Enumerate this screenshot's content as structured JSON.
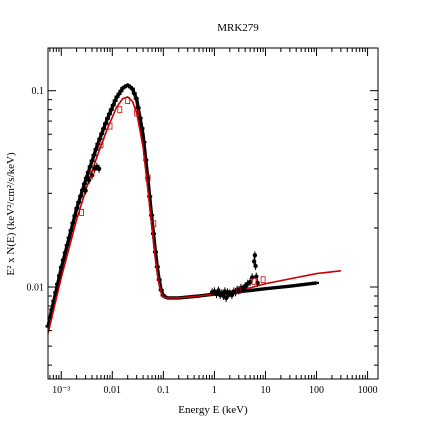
{
  "chart_data": {
    "type": "line",
    "title": "MRK279",
    "xlabel": "Energy E (keV)",
    "ylabel": "E² x N(E) (keV²/cm²/s/keV)",
    "xscale": "log",
    "yscale": "log",
    "xlim": [
      0.00055,
      1600
    ],
    "ylim": [
      0.0034,
      0.165
    ],
    "x_tick_labels": [
      {
        "value": 0.001,
        "label": "10⁻³"
      },
      {
        "value": 0.01,
        "label": "0.01"
      },
      {
        "value": 0.1,
        "label": "0.1"
      },
      {
        "value": 1,
        "label": "1"
      },
      {
        "value": 10,
        "label": "10"
      },
      {
        "value": 100,
        "label": "100"
      },
      {
        "value": 1000,
        "label": "1000"
      }
    ],
    "y_tick_labels": [
      {
        "value": 0.01,
        "label": "0.01"
      },
      {
        "value": 0.1,
        "label": "0.1"
      }
    ],
    "grid": false,
    "legend": "none",
    "series": [
      {
        "color": "#000000",
        "style": "dense-markers",
        "x": [
          0.00055,
          0.001,
          0.002,
          0.003,
          0.005,
          0.008,
          0.012,
          0.016,
          0.02,
          0.025,
          0.03,
          0.04,
          0.05,
          0.06,
          0.07,
          0.08,
          0.09,
          0.1,
          0.12,
          0.2,
          0.5,
          1,
          2,
          5,
          10,
          30,
          100
        ],
        "y": [
          0.0063,
          0.0125,
          0.025,
          0.035,
          0.052,
          0.072,
          0.092,
          0.103,
          0.107,
          0.102,
          0.09,
          0.06,
          0.035,
          0.022,
          0.015,
          0.0115,
          0.0097,
          0.009,
          0.0088,
          0.0088,
          0.009,
          0.0092,
          0.0094,
          0.0096,
          0.0098,
          0.0101,
          0.0105
        ]
      },
      {
        "color": "#cc0000",
        "style": "line",
        "x": [
          0.00055,
          0.001,
          0.002,
          0.003,
          0.005,
          0.008,
          0.012,
          0.016,
          0.02,
          0.025,
          0.03,
          0.04,
          0.05,
          0.06,
          0.07,
          0.08,
          0.09,
          0.1,
          0.12,
          0.2,
          0.5,
          1,
          2,
          5,
          10,
          30,
          100,
          300
        ],
        "y": [
          0.0058,
          0.0112,
          0.022,
          0.031,
          0.046,
          0.064,
          0.082,
          0.091,
          0.093,
          0.088,
          0.077,
          0.052,
          0.031,
          0.02,
          0.0138,
          0.0108,
          0.0094,
          0.0089,
          0.0088,
          0.0088,
          0.009,
          0.0092,
          0.0095,
          0.0099,
          0.0104,
          0.011,
          0.0117,
          0.0121
        ]
      },
      {
        "color": "#000000",
        "style": "data-points",
        "x": [
          0.003,
          0.0035,
          0.004,
          0.0045,
          0.005,
          0.0055,
          0.9,
          1.0,
          1.1,
          1.2,
          1.3,
          1.4,
          1.5,
          1.6,
          1.7,
          1.8,
          1.9,
          2.0,
          2.2,
          2.4,
          2.6,
          2.8,
          3.0,
          3.3,
          3.6,
          4.0,
          4.5,
          5.0,
          5.5,
          6.0,
          6.2,
          6.4,
          6.6,
          7.0
        ],
        "y": [
          0.031,
          0.035,
          0.037,
          0.04,
          0.041,
          0.04,
          0.0094,
          0.0095,
          0.0092,
          0.0096,
          0.0091,
          0.0093,
          0.009,
          0.0095,
          0.0088,
          0.0094,
          0.0092,
          0.0093,
          0.0091,
          0.0095,
          0.0094,
          0.0097,
          0.0096,
          0.0099,
          0.0098,
          0.0101,
          0.0104,
          0.0106,
          0.0112,
          0.0135,
          0.0145,
          0.0128,
          0.0113,
          0.0105
        ]
      },
      {
        "color": "#cc0000",
        "style": "error-boxes",
        "x": [
          0.0025,
          0.004,
          0.006,
          0.009,
          0.014,
          0.02,
          0.03,
          0.05,
          0.065,
          3.0,
          6.0,
          9.0
        ],
        "y": [
          0.024,
          0.038,
          0.053,
          0.066,
          0.08,
          0.089,
          0.077,
          0.036,
          0.021,
          0.0096,
          0.0107,
          0.0109
        ]
      }
    ]
  }
}
